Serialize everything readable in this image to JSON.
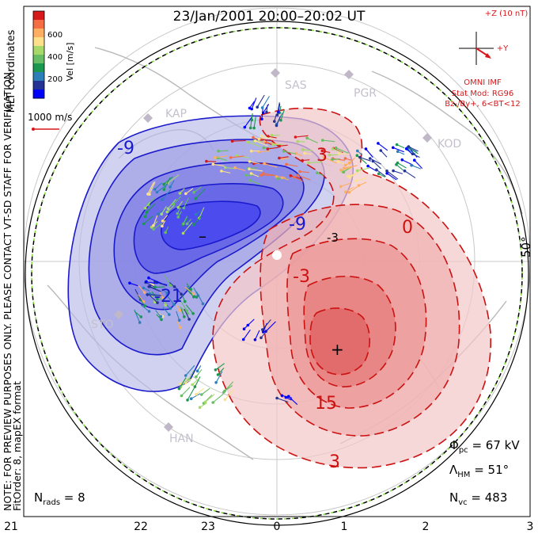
{
  "title": "23/Jan/2001 20:00–20:02 UT",
  "colorbar": {
    "label": "Vel [m/s]",
    "ticks": [
      "600",
      "400",
      "200"
    ],
    "colors": [
      "#d7191c",
      "#f46d43",
      "#fdae61",
      "#fee08b",
      "#a6d96a",
      "#66bd63",
      "#1a9850",
      "#2c7fb8",
      "#253494",
      "#0000ff"
    ]
  },
  "side_text": {
    "coordinates": "MLT coordinates",
    "preview_note": "NOTE: FOR PREVIEW PURPOSES ONLY. PLEASE CONTACT VT-SD STAFF FOR VERIFICATION.",
    "fit_info": "FitOrder: 8, mapEX format"
  },
  "reference_vector": {
    "label": "1000 m/s"
  },
  "imf": {
    "z_label": "+Z (10 nT)",
    "y_label": "+Y",
    "source": "OMNI IMF",
    "model": "Stat Mod: RG96",
    "condition": "Bz-/By+, 6<BT<12"
  },
  "stations": [
    "SAS",
    "PGR",
    "KOD",
    "KAP",
    "STO",
    "HAN"
  ],
  "latitude_label": "50°",
  "contour_labels": {
    "negative": [
      "-9",
      "-21",
      "-9",
      "-3"
    ],
    "positive": [
      "3",
      "0",
      "-3",
      "15",
      "3"
    ],
    "min_marker": "–",
    "max_marker": "+"
  },
  "stats": {
    "phi_pc": "Φpc = 67 kV",
    "phi_pc_value": "67 kV",
    "lambda_hm_value": "51°",
    "n_vc_value": "483",
    "n_rads_value": "8"
  },
  "mlt_ticks": [
    "21",
    "22",
    "23",
    "0",
    "1",
    "2",
    "3"
  ],
  "colors": {
    "negative": "#1a1acc",
    "positive": "#cc1111",
    "boundary": "#7fdc3a"
  }
}
